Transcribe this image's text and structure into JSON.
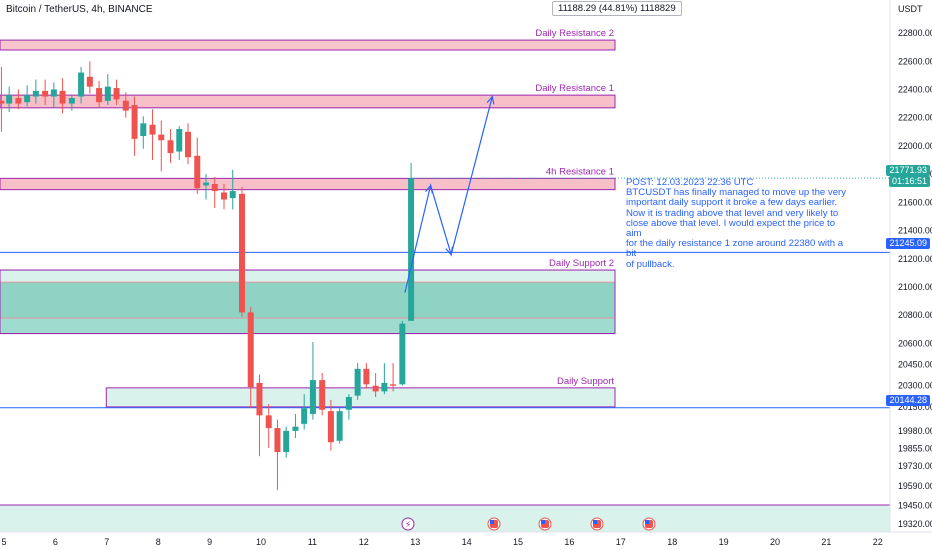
{
  "header": {
    "title": "Bitcoin / TetherUS, 4h, BINANCE",
    "measure": "11188.29 (44.81%) 1118829"
  },
  "axis": {
    "currency": "USDT",
    "y_ticks": [
      22800,
      22600,
      22400,
      22200,
      22000,
      21800,
      21600,
      21400,
      21200,
      21000,
      20800,
      20600,
      20450,
      20300,
      20150,
      19980,
      19855,
      19730,
      19590,
      19450,
      19320
    ],
    "y_tick_labels": [
      "22800.00",
      "22600.00",
      "22400.00",
      "22200.00",
      "22000.00",
      "21800.00",
      "21600.00",
      "21400.00",
      "21200.00",
      "21000.00",
      "20800.00",
      "20600.00",
      "20450.00",
      "20300.00",
      "20150.00",
      "19980.00",
      "19855.00",
      "19730.00",
      "19590.00",
      "19450.00",
      "19320.00"
    ],
    "x_ticks": [
      "5",
      "6",
      "7",
      "8",
      "9",
      "10",
      "11",
      "12",
      "13",
      "14",
      "15",
      "16",
      "17",
      "18",
      "19",
      "20",
      "21",
      "22"
    ]
  },
  "price_tags": {
    "current_price": "21771.93",
    "countdown": "01:16:51",
    "line_upper": "21245.09",
    "line_lower": "20144.28"
  },
  "zones": [
    {
      "label": "Daily Resistance 2",
      "top": 22750,
      "bottom": 22680,
      "fill": "#f7c6cc",
      "stroke": "#9c27b0"
    },
    {
      "label": "Daily Resistance 1",
      "top": 22360,
      "bottom": 22270,
      "fill": "#f7c0c8",
      "stroke": "#9c27b0"
    },
    {
      "label": "4h Resistance 1",
      "top": 21770,
      "bottom": 21690,
      "fill": "#f7c0c8",
      "stroke": "#9c27b0"
    },
    {
      "label": "Daily Support 2",
      "top": 21120,
      "bottom": 20670,
      "fill": "#9fdccf",
      "stroke": "#9c27b0"
    },
    {
      "label": "Daily Support",
      "top": 20285,
      "bottom": 20150,
      "fill": "#d9f2ec",
      "stroke": "#9c27b0"
    }
  ],
  "annotation": {
    "lines": [
      "POST: 12.03.2023 22:36 UTC",
      "BTCUSDT has finally managed to move up the very",
      "important daily support it broke a few days earlier.",
      "Now it is trading above that level and very likely to",
      "close above that level. I would expect the price to aim",
      "for the daily resistance 1 zone around 22380 with a bit",
      "of pullback."
    ]
  },
  "colors": {
    "up": "#26a69a",
    "down": "#ef5350",
    "line": "#2962ff",
    "zone_text": "#9c27b0"
  },
  "chart_data": {
    "type": "candlestick",
    "title": "Bitcoin / TetherUS, 4h, BINANCE",
    "xlabel": "",
    "ylabel": "",
    "ylim": [
      19290,
      22960
    ],
    "x_ticks": [
      "5",
      "6",
      "7",
      "8",
      "9",
      "10",
      "11",
      "12",
      "13",
      "14",
      "15",
      "16",
      "17",
      "18",
      "19",
      "20",
      "21",
      "22"
    ],
    "horizontal_lines": [
      21245.09,
      20144.28
    ],
    "current_price": 21771.93,
    "projection_path": [
      {
        "day": 12.8,
        "price": 20960
      },
      {
        "day": 13.3,
        "price": 21720
      },
      {
        "day": 13.7,
        "price": 21230
      },
      {
        "day": 14.5,
        "price": 22350
      }
    ],
    "candles": [
      {
        "day": 4.95,
        "o": 22320,
        "h": 22560,
        "c": 22300,
        "l": 22100
      },
      {
        "day": 5.1,
        "o": 22300,
        "h": 22420,
        "c": 22360,
        "l": 22240
      },
      {
        "day": 5.28,
        "o": 22340,
        "h": 22400,
        "c": 22300,
        "l": 22260
      },
      {
        "day": 5.45,
        "o": 22310,
        "h": 22430,
        "c": 22360,
        "l": 22280
      },
      {
        "day": 5.62,
        "o": 22350,
        "h": 22470,
        "c": 22390,
        "l": 22300
      },
      {
        "day": 5.8,
        "o": 22390,
        "h": 22470,
        "c": 22350,
        "l": 22290
      },
      {
        "day": 5.97,
        "o": 22350,
        "h": 22450,
        "c": 22400,
        "l": 22270
      },
      {
        "day": 6.14,
        "o": 22390,
        "h": 22480,
        "c": 22300,
        "l": 22230
      },
      {
        "day": 6.32,
        "o": 22300,
        "h": 22360,
        "c": 22340,
        "l": 22250
      },
      {
        "day": 6.5,
        "o": 22350,
        "h": 22560,
        "c": 22520,
        "l": 22300
      },
      {
        "day": 6.67,
        "o": 22490,
        "h": 22600,
        "c": 22420,
        "l": 22370
      },
      {
        "day": 6.85,
        "o": 22410,
        "h": 22460,
        "c": 22310,
        "l": 22270
      },
      {
        "day": 7.02,
        "o": 22320,
        "h": 22510,
        "c": 22420,
        "l": 22290
      },
      {
        "day": 7.19,
        "o": 22410,
        "h": 22470,
        "c": 22330,
        "l": 22290
      },
      {
        "day": 7.37,
        "o": 22320,
        "h": 22380,
        "c": 22250,
        "l": 22200
      },
      {
        "day": 7.54,
        "o": 22290,
        "h": 22350,
        "c": 22050,
        "l": 21930
      },
      {
        "day": 7.71,
        "o": 22070,
        "h": 22210,
        "c": 22160,
        "l": 21980
      },
      {
        "day": 7.89,
        "o": 22150,
        "h": 22260,
        "c": 22080,
        "l": 21900
      },
      {
        "day": 8.06,
        "o": 22080,
        "h": 22180,
        "c": 22040,
        "l": 21820
      },
      {
        "day": 8.24,
        "o": 22040,
        "h": 22120,
        "c": 21950,
        "l": 21880
      },
      {
        "day": 8.41,
        "o": 21960,
        "h": 22140,
        "c": 22120,
        "l": 21900
      },
      {
        "day": 8.58,
        "o": 22100,
        "h": 22160,
        "c": 21920,
        "l": 21870
      },
      {
        "day": 8.76,
        "o": 21930,
        "h": 22060,
        "c": 21700,
        "l": 21660
      },
      {
        "day": 8.93,
        "o": 21720,
        "h": 21800,
        "c": 21740,
        "l": 21620
      },
      {
        "day": 9.1,
        "o": 21730,
        "h": 21780,
        "c": 21680,
        "l": 21560
      },
      {
        "day": 9.28,
        "o": 21670,
        "h": 21730,
        "c": 21620,
        "l": 21550
      },
      {
        "day": 9.45,
        "o": 21630,
        "h": 21830,
        "c": 21680,
        "l": 21550
      },
      {
        "day": 9.63,
        "o": 21660,
        "h": 21710,
        "c": 20820,
        "l": 20790
      },
      {
        "day": 9.8,
        "o": 20820,
        "h": 20860,
        "c": 20290,
        "l": 20140
      },
      {
        "day": 9.97,
        "o": 20320,
        "h": 20380,
        "c": 20090,
        "l": 19800
      },
      {
        "day": 10.15,
        "o": 20090,
        "h": 20170,
        "c": 20000,
        "l": 19860
      },
      {
        "day": 10.32,
        "o": 20000,
        "h": 20060,
        "c": 19830,
        "l": 19560
      },
      {
        "day": 10.49,
        "o": 19830,
        "h": 20010,
        "c": 19980,
        "l": 19790
      },
      {
        "day": 10.67,
        "o": 19980,
        "h": 20100,
        "c": 20010,
        "l": 19930
      },
      {
        "day": 10.84,
        "o": 20030,
        "h": 20240,
        "c": 20140,
        "l": 19990
      },
      {
        "day": 11.01,
        "o": 20100,
        "h": 20610,
        "c": 20340,
        "l": 20060
      },
      {
        "day": 11.19,
        "o": 20340,
        "h": 20390,
        "c": 20130,
        "l": 20090
      },
      {
        "day": 11.36,
        "o": 20120,
        "h": 20200,
        "c": 19900,
        "l": 19840
      },
      {
        "day": 11.53,
        "o": 19910,
        "h": 20140,
        "c": 20120,
        "l": 19890
      },
      {
        "day": 11.71,
        "o": 20130,
        "h": 20240,
        "c": 20220,
        "l": 20060
      },
      {
        "day": 11.88,
        "o": 20230,
        "h": 20460,
        "c": 20420,
        "l": 20200
      },
      {
        "day": 12.05,
        "o": 20420,
        "h": 20460,
        "c": 20310,
        "l": 20280
      },
      {
        "day": 12.23,
        "o": 20300,
        "h": 20390,
        "c": 20260,
        "l": 20220
      },
      {
        "day": 12.4,
        "o": 20260,
        "h": 20460,
        "c": 20320,
        "l": 20240
      },
      {
        "day": 12.57,
        "o": 20310,
        "h": 20460,
        "c": 20300,
        "l": 20260
      },
      {
        "day": 12.75,
        "o": 20310,
        "h": 20760,
        "c": 20740,
        "l": 20300
      },
      {
        "day": 12.92,
        "o": 20760,
        "h": 21880,
        "c": 21770,
        "l": 20760
      }
    ]
  }
}
